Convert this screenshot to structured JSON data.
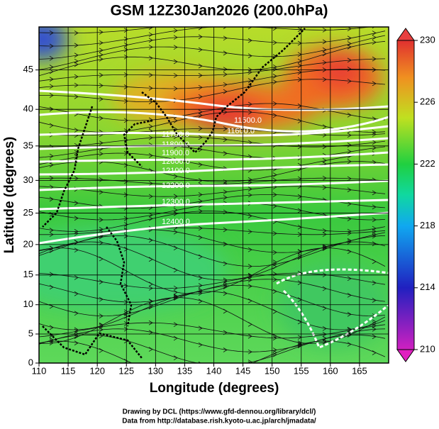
{
  "title": "GSM 12Z30Jan2026 (200.0hPa)",
  "x_axis": {
    "label": "Longitude (degrees)",
    "lim": [
      110,
      170
    ],
    "ticks": [
      110,
      115,
      120,
      125,
      130,
      135,
      140,
      145,
      150,
      155,
      160,
      165
    ]
  },
  "y_axis": {
    "label": "Latitude  (degrees)",
    "lim": [
      0,
      50
    ],
    "ticks": [
      0,
      5,
      10,
      15,
      20,
      25,
      30,
      35,
      40,
      45
    ]
  },
  "colorbar": {
    "lim": [
      210,
      230
    ],
    "ticks": [
      210,
      214,
      218,
      222,
      226,
      230
    ]
  },
  "contour_labels": [
    "11500.0",
    "11600.0",
    "11700.0",
    "11800.0",
    "11900.0",
    "12000.0",
    "12100.0",
    "12200.0",
    "12300.0",
    "12400.0"
  ],
  "footer": [
    "Drawing by DCL (https://www.gfd-dennou.org/library/dcl/)",
    "Data from http://database.rish.kyoto-u.ac.jp/arch/jmadata/"
  ]
}
